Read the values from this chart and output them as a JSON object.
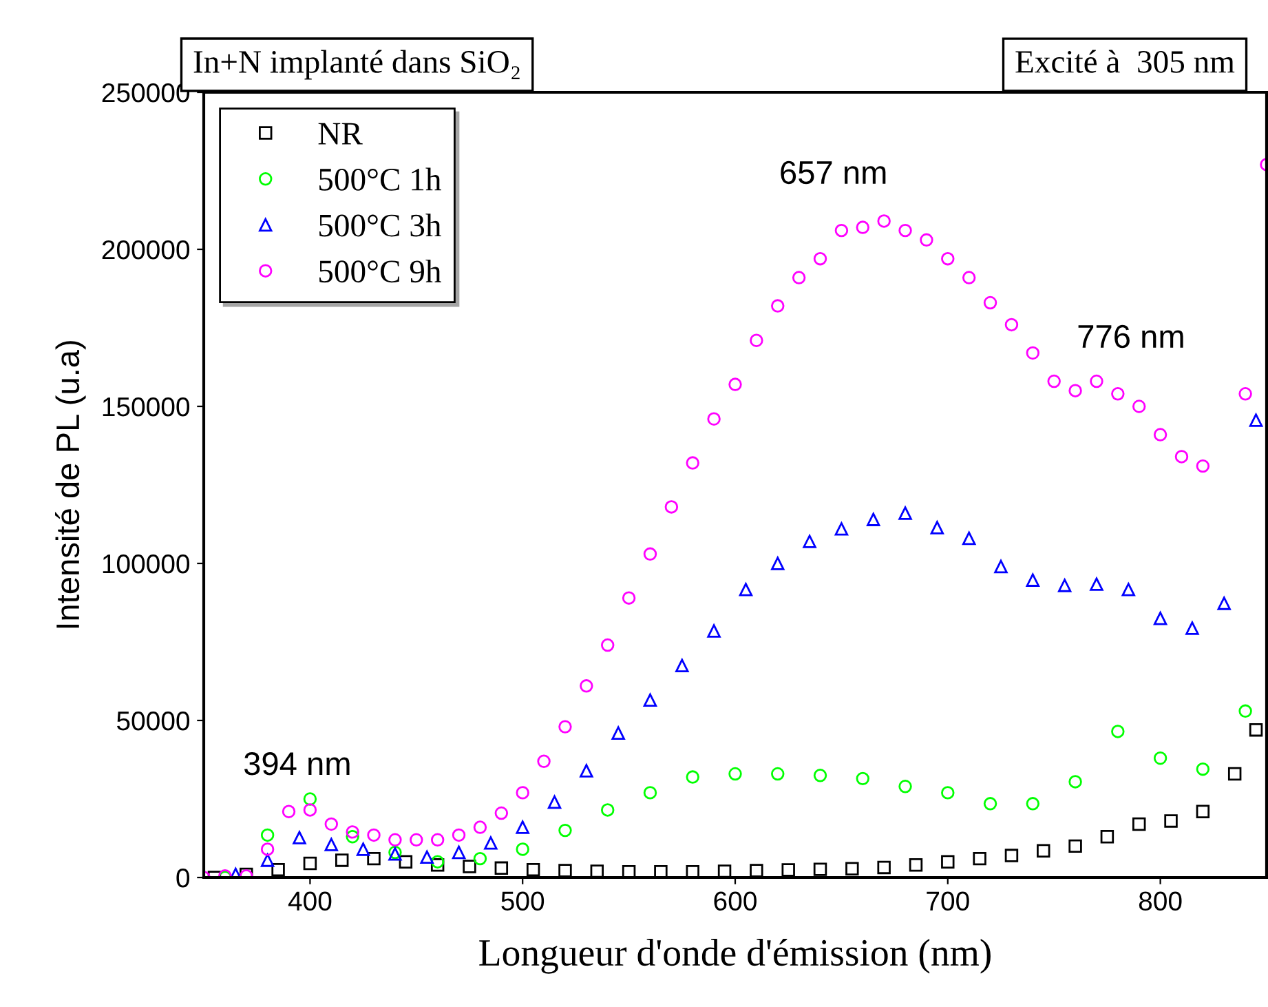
{
  "chart_data": {
    "type": "scatter",
    "title": "In+N implanté dans SiO₂",
    "subtitle": "Excité à  305 nm",
    "xlabel": "Longueur d'onde d'émission (nm)",
    "ylabel": "Intensité de PL (u.a)",
    "xlim": [
      350,
      850
    ],
    "xticks": [
      400,
      500,
      600,
      700,
      800
    ],
    "ylim": [
      0,
      250000
    ],
    "yticks": [
      0,
      50000,
      100000,
      150000,
      200000,
      250000
    ],
    "grid": false,
    "legend": "top left",
    "series": [
      {
        "name": "NR",
        "color": "#000000",
        "marker": "square",
        "x": [
          355,
          370,
          385,
          400,
          415,
          430,
          445,
          460,
          475,
          490,
          505,
          520,
          535,
          550,
          565,
          580,
          595,
          610,
          625,
          640,
          655,
          670,
          685,
          700,
          715,
          730,
          745,
          760,
          775,
          790,
          805,
          820,
          835,
          845
        ],
        "values": [
          0,
          1000,
          2500,
          4500,
          5500,
          6000,
          5000,
          4000,
          3500,
          3000,
          2500,
          2200,
          2000,
          1800,
          1800,
          1800,
          2000,
          2200,
          2400,
          2600,
          2800,
          3200,
          4000,
          5000,
          6000,
          7000,
          8500,
          10000,
          13000,
          17000,
          18000,
          21000,
          33000,
          47000
        ]
      },
      {
        "name": "500°C 1h",
        "color": "#00ff00",
        "marker": "circle",
        "x": [
          360,
          380,
          400,
          420,
          440,
          460,
          480,
          500,
          520,
          540,
          560,
          580,
          600,
          620,
          640,
          660,
          680,
          700,
          720,
          740,
          760,
          780,
          800,
          820,
          840
        ],
        "values": [
          0,
          13500,
          25000,
          13000,
          8000,
          5000,
          6000,
          9000,
          15000,
          21500,
          27000,
          32000,
          33000,
          33000,
          32500,
          31500,
          29000,
          27000,
          23500,
          23500,
          30500,
          46500,
          38000,
          34500,
          53000
        ]
      },
      {
        "name": "500°C 3h",
        "color": "#0000ff",
        "marker": "triangle",
        "x": [
          365,
          380,
          395,
          410,
          425,
          440,
          455,
          470,
          485,
          500,
          515,
          530,
          545,
          560,
          575,
          590,
          605,
          620,
          635,
          650,
          665,
          680,
          695,
          710,
          725,
          740,
          755,
          770,
          785,
          800,
          815,
          830,
          845
        ],
        "values": [
          1000,
          5500,
          12700,
          10500,
          9000,
          7500,
          6500,
          8000,
          11000,
          16000,
          24000,
          34000,
          46000,
          56500,
          67500,
          78500,
          91700,
          100000,
          107000,
          111000,
          114000,
          116000,
          111400,
          108000,
          99000,
          94700,
          93000,
          93400,
          91700,
          82500,
          79400,
          87300,
          145600
        ]
      },
      {
        "name": "500°C 9h",
        "color": "#ff00ff",
        "marker": "circle",
        "x": [
          350,
          360,
          370,
          380,
          390,
          400,
          410,
          420,
          430,
          440,
          450,
          460,
          470,
          480,
          490,
          500,
          510,
          520,
          530,
          540,
          550,
          560,
          570,
          580,
          590,
          600,
          610,
          620,
          630,
          640,
          650,
          660,
          670,
          680,
          690,
          700,
          710,
          720,
          730,
          740,
          750,
          760,
          770,
          780,
          790,
          800,
          810,
          820,
          840,
          850
        ],
        "values": [
          0,
          500,
          500,
          9000,
          21000,
          21500,
          17000,
          14500,
          13500,
          12000,
          12000,
          12000,
          13500,
          16000,
          20500,
          27000,
          37000,
          48000,
          61000,
          74000,
          89000,
          103000,
          118000,
          132000,
          146000,
          157000,
          171000,
          182000,
          191000,
          197000,
          206000,
          207000,
          209000,
          206000,
          203000,
          197000,
          191000,
          183000,
          176000,
          167000,
          158000,
          155000,
          158000,
          154000,
          150000,
          141000,
          134000,
          131000,
          154000,
          227000
        ]
      }
    ],
    "annotations": [
      {
        "text": "394 nm",
        "x": 394,
        "y": 22000
      },
      {
        "text": "657 nm",
        "x": 657,
        "y": 209000
      },
      {
        "text": "776 nm",
        "x": 770,
        "y": 158000
      }
    ]
  }
}
